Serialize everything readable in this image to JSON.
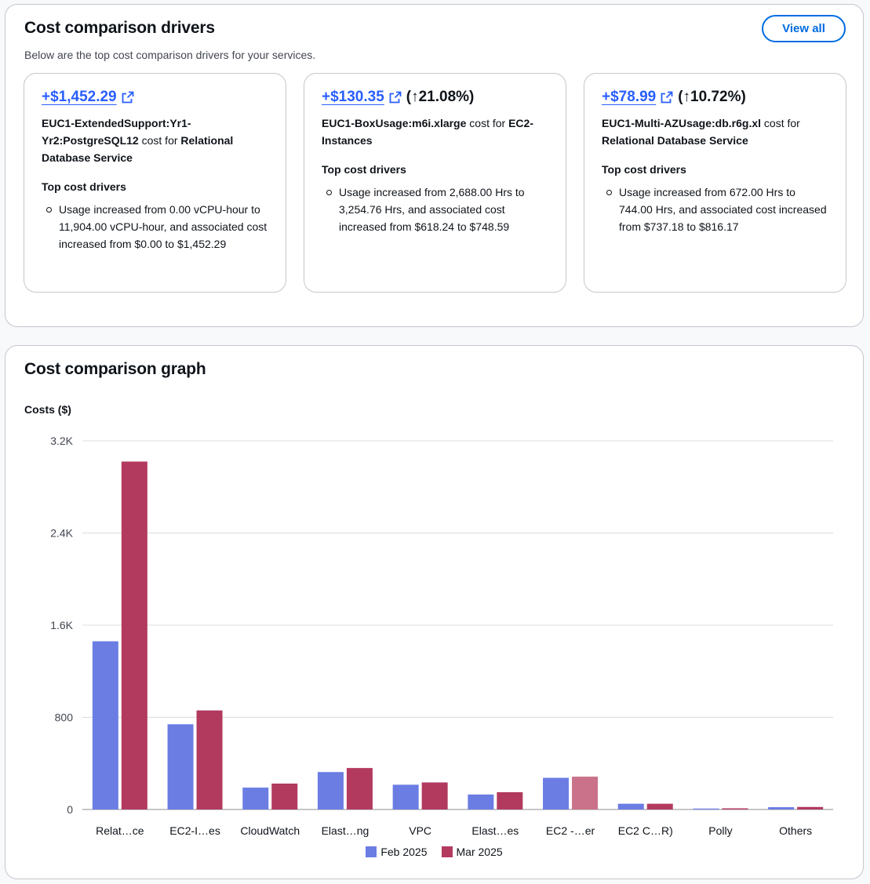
{
  "drivers": {
    "title": "Cost comparison drivers",
    "description": "Below are the top cost comparison drivers for your services.",
    "view_all_label": "View all",
    "cards": [
      {
        "amount": "+$1,452.29",
        "change": "",
        "usage_type": "EUC1-ExtendedSupport:Yr1-Yr2:PostgreSQL12",
        "cost_for": " cost for ",
        "service": "Relational Database Service",
        "drivers_heading": "Top cost drivers",
        "detail": "Usage increased from 0.00 vCPU-hour to 11,904.00 vCPU-hour, and associated cost increased from $0.00 to $1,452.29"
      },
      {
        "amount": "+$130.35",
        "change": "(↑21.08%)",
        "usage_type": "EUC1-BoxUsage:m6i.xlarge",
        "cost_for": " cost for ",
        "service": "EC2-Instances",
        "drivers_heading": "Top cost drivers",
        "detail": "Usage increased from 2,688.00 Hrs to 3,254.76 Hrs, and associated cost increased from $618.24 to $748.59"
      },
      {
        "amount": "+$78.99",
        "change": "(↑10.72%)",
        "usage_type": "EUC1-Multi-AZUsage:db.r6g.xl",
        "cost_for": " cost for ",
        "service": "Relational Database Service",
        "drivers_heading": "Top cost drivers",
        "detail": "Usage increased from 672.00 Hrs to 744.00 Hrs, and associated cost increased from $737.18 to $816.17"
      }
    ],
    "icons": {
      "external_link": "external-link-icon"
    }
  },
  "graph": {
    "title": "Cost comparison graph"
  },
  "colors": {
    "link": "#295eff",
    "feb": "#6b7de3",
    "mar": "#b23a5e",
    "mar_highlight": "#c97289",
    "grid": "#dcdcde"
  },
  "chart_data": {
    "type": "bar",
    "ylabel": "Costs ($)",
    "ylim": [
      0,
      3200
    ],
    "yticks": [
      {
        "value": 0,
        "label": "0"
      },
      {
        "value": 800,
        "label": "800"
      },
      {
        "value": 1600,
        "label": "1.6K"
      },
      {
        "value": 2400,
        "label": "2.4K"
      },
      {
        "value": 3200,
        "label": "3.2K"
      }
    ],
    "categories": [
      "Relat…ce",
      "EC2-I…es",
      "CloudWatch",
      "Elast…ng",
      "VPC",
      "Elast…es",
      "EC2 -…er",
      "EC2 C…R)",
      "Polly",
      "Others"
    ],
    "series": [
      {
        "name": "Feb 2025",
        "values": [
          1460,
          740,
          190,
          325,
          215,
          130,
          275,
          50,
          8,
          20
        ]
      },
      {
        "name": "Mar 2025",
        "values": [
          3020,
          860,
          225,
          360,
          235,
          150,
          285,
          50,
          10,
          22
        ]
      }
    ],
    "highlighted": {
      "series": 1,
      "index": 6
    },
    "legend_position": "bottom",
    "grid": true
  }
}
